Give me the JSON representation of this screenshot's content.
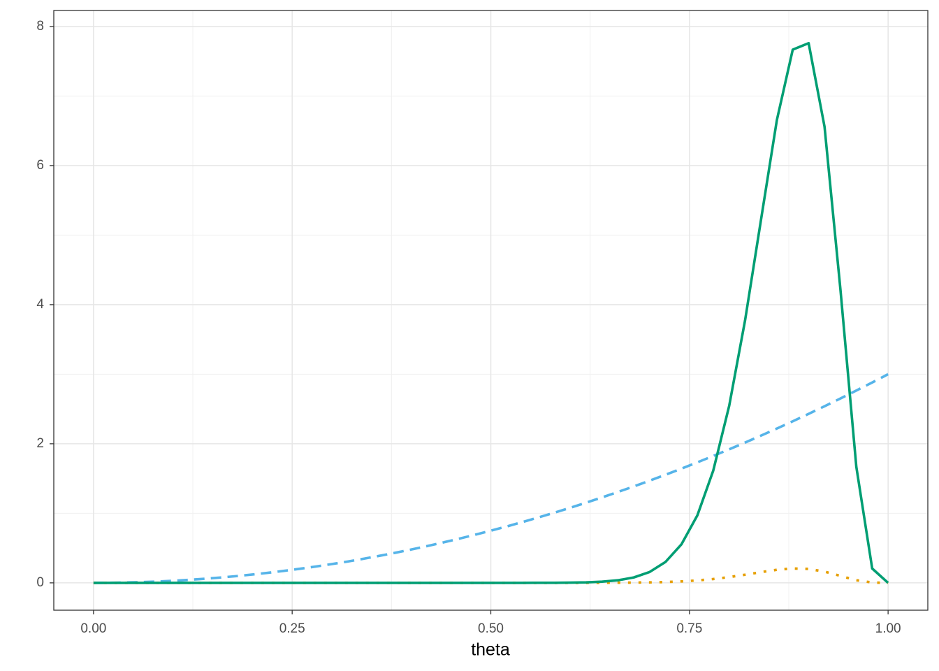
{
  "chart_data": {
    "type": "line",
    "x_label": "theta",
    "x": [
      0,
      0.02,
      0.04,
      0.06,
      0.08,
      0.1,
      0.12,
      0.14,
      0.16,
      0.18,
      0.2,
      0.22,
      0.24,
      0.26,
      0.28,
      0.3,
      0.32,
      0.34,
      0.36,
      0.38,
      0.4,
      0.42,
      0.44,
      0.46,
      0.48,
      0.5,
      0.52,
      0.54,
      0.56,
      0.58,
      0.6,
      0.62,
      0.64,
      0.66,
      0.68,
      0.7,
      0.72,
      0.74,
      0.76,
      0.78,
      0.8,
      0.82,
      0.84,
      0.86,
      0.88,
      0.9,
      0.92,
      0.94,
      0.96,
      0.98,
      1
    ],
    "series": [
      {
        "color": "#56B4E9",
        "dash": "dashed",
        "values": [
          0,
          0.001,
          0.005,
          0.011,
          0.019,
          0.03,
          0.043,
          0.059,
          0.077,
          0.097,
          0.12,
          0.145,
          0.173,
          0.203,
          0.235,
          0.27,
          0.307,
          0.347,
          0.389,
          0.433,
          0.48,
          0.529,
          0.581,
          0.635,
          0.691,
          0.75,
          0.811,
          0.875,
          0.941,
          1.009,
          1.08,
          1.153,
          1.229,
          1.307,
          1.387,
          1.47,
          1.555,
          1.643,
          1.733,
          1.825,
          1.92,
          2.017,
          2.117,
          2.219,
          2.323,
          2.43,
          2.539,
          2.651,
          2.765,
          2.881,
          3
        ]
      },
      {
        "color": "#E69F00",
        "dash": "dotted",
        "values": [
          0,
          0,
          0,
          0,
          0,
          0,
          0,
          0,
          0,
          0,
          0,
          0,
          0,
          0,
          0,
          0,
          0,
          0,
          0,
          0,
          0,
          0,
          0,
          0,
          0,
          0,
          0,
          0,
          0,
          0,
          0,
          0,
          0.001,
          0.002,
          0.004,
          0.007,
          0.012,
          0.021,
          0.035,
          0.055,
          0.083,
          0.117,
          0.154,
          0.188,
          0.207,
          0.2,
          0.162,
          0.1,
          0.038,
          0.005,
          0
        ]
      },
      {
        "color": "#009E73",
        "dash": "solid",
        "values": [
          0,
          0,
          0,
          0,
          0,
          0,
          0,
          0,
          0,
          0,
          0,
          0,
          0,
          0,
          0,
          0,
          0,
          0,
          0,
          0,
          0,
          0,
          0,
          0,
          0,
          0,
          0,
          0,
          0.001,
          0.001,
          0.003,
          0.007,
          0.017,
          0.037,
          0.078,
          0.157,
          0.302,
          0.555,
          0.971,
          1.616,
          2.545,
          3.774,
          5.217,
          6.653,
          7.667,
          7.76,
          6.56,
          4.221,
          1.67,
          0.206,
          0
        ]
      }
    ],
    "xlim": [
      -0.05,
      1.05
    ],
    "ylim": [
      -0.393,
      8.23
    ],
    "xticks": [
      {
        "value": 0,
        "label": "0.00"
      },
      {
        "value": 0.25,
        "label": "0.25"
      },
      {
        "value": 0.5,
        "label": "0.50"
      },
      {
        "value": 0.75,
        "label": "0.75"
      },
      {
        "value": 1,
        "label": "1.00"
      }
    ],
    "yticks": [
      0,
      2,
      4,
      6,
      8
    ],
    "xminorticks": [
      0.125,
      0.375,
      0.625,
      0.875
    ],
    "yminorticks": [
      1,
      3,
      5,
      7
    ],
    "grid": true
  }
}
